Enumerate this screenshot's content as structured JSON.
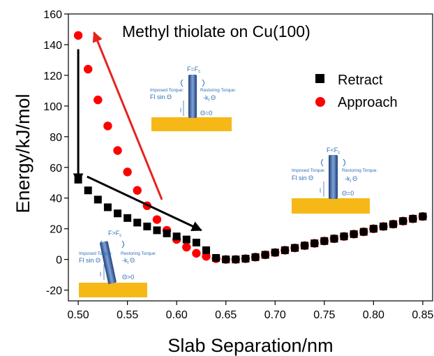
{
  "chart_data": {
    "type": "scatter",
    "title": "Methyl thiolate on Cu(100)",
    "xlabel": "Slab Separation/nm",
    "ylabel": "Energy/kJ/mol",
    "xlim": [
      0.49,
      0.86
    ],
    "ylim": [
      -27,
      160
    ],
    "xticks": [
      "0.50",
      "0.55",
      "0.60",
      "0.65",
      "0.70",
      "0.75",
      "0.80",
      "0.85"
    ],
    "yticks": [
      "-20",
      "0",
      "20",
      "40",
      "60",
      "80",
      "100",
      "120",
      "140",
      "160"
    ],
    "legend_position": "right",
    "series": [
      {
        "name": "Retract",
        "marker": "square",
        "color": "#000000",
        "x": [
          0.5,
          0.51,
          0.52,
          0.53,
          0.54,
          0.55,
          0.56,
          0.57,
          0.58,
          0.59,
          0.6,
          0.61,
          0.62,
          0.63,
          0.64,
          0.65,
          0.66,
          0.67,
          0.68,
          0.69,
          0.7,
          0.71,
          0.72,
          0.73,
          0.74,
          0.75,
          0.76,
          0.77,
          0.78,
          0.79,
          0.8,
          0.81,
          0.82,
          0.83,
          0.84,
          0.85
        ],
        "y": [
          52,
          45,
          39,
          34,
          30,
          27,
          24,
          21.5,
          19,
          17,
          15,
          13,
          11,
          6,
          1,
          0,
          0,
          0.5,
          1.5,
          3,
          4.5,
          6,
          7.5,
          9,
          10.5,
          12,
          13.5,
          15,
          16.5,
          18,
          20,
          21.5,
          23,
          25,
          26.5,
          28
        ]
      },
      {
        "name": "Approach",
        "marker": "circle",
        "color": "#ff0000",
        "x": [
          0.5,
          0.51,
          0.52,
          0.53,
          0.54,
          0.55,
          0.56,
          0.57,
          0.58,
          0.59,
          0.6,
          0.61,
          0.62,
          0.63,
          0.64,
          0.65,
          0.66,
          0.67,
          0.68,
          0.69,
          0.7,
          0.71,
          0.72,
          0.73,
          0.74,
          0.75,
          0.76,
          0.77,
          0.78,
          0.79,
          0.8,
          0.81,
          0.82,
          0.83,
          0.84,
          0.85
        ],
        "y": [
          146,
          124,
          104,
          87,
          71,
          57,
          45,
          35,
          26,
          19,
          13,
          8,
          4,
          2,
          0.5,
          0,
          0,
          0.5,
          1.5,
          3,
          4.5,
          6,
          7.5,
          9,
          10.5,
          12,
          13.5,
          15,
          16.5,
          18,
          20,
          21.5,
          23,
          25,
          26.5,
          28
        ]
      }
    ],
    "annotations": {
      "arrows": [
        {
          "name": "black-down",
          "color": "#000000",
          "from": [
            0.5,
            137
          ],
          "to": [
            0.5,
            50
          ]
        },
        {
          "name": "black-diag",
          "color": "#000000",
          "from": [
            0.509,
            54
          ],
          "to": [
            0.625,
            19
          ]
        },
        {
          "name": "red-diag",
          "color": "#e8231e",
          "from": [
            0.585,
            39
          ],
          "to": [
            0.516,
            148
          ]
        }
      ]
    },
    "insets": [
      {
        "key": "top",
        "force": "F=F",
        "force_sub": "c",
        "imposed": "Imposed Torque:",
        "imposed_formula": "Fl sin Θ",
        "restoring": "Restoring Torque:",
        "restoring_formula": "-k",
        "restoring_sub": "t",
        "restoring_theta": "Θ",
        "length": "l",
        "angle": "Θ=0"
      },
      {
        "key": "mid",
        "force": "F<F",
        "force_sub": "c",
        "imposed": "Imposed Torque:",
        "imposed_formula": "Fl sin Θ",
        "restoring": "Restoring Torque:",
        "restoring_formula": "-k",
        "restoring_sub": "t",
        "restoring_theta": "Θ",
        "length": "l",
        "angle": "Θ=0"
      },
      {
        "key": "low",
        "force": "F>F",
        "force_sub": "c",
        "imposed": "Imposed Torque:",
        "imposed_formula": "Fl sin Θ",
        "restoring": "Restoring Torque:",
        "restoring_formula": "-k",
        "restoring_sub": "t",
        "restoring_theta": "Θ",
        "length": "l",
        "angle": "Θ>0"
      }
    ]
  }
}
